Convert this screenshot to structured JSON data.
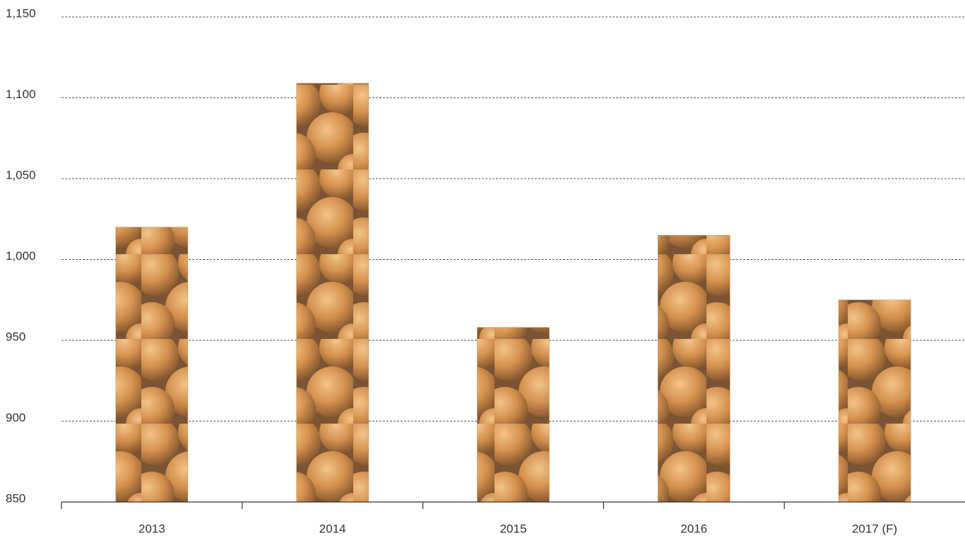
{
  "chart_data": {
    "type": "bar",
    "categories": [
      "2013",
      "2014",
      "2015",
      "2016",
      "2017 (F)"
    ],
    "values": [
      1020,
      1109,
      958,
      1015,
      975
    ],
    "color": "#c98a4a",
    "ylim": [
      850,
      1150
    ],
    "yticks": [
      850,
      900,
      950,
      {
        "value": 1000,
        "label": "1,000"
      },
      {
        "value": 1050,
        "label": "1,050"
      },
      {
        "value": 1100,
        "label": "1,100"
      },
      {
        "value": 1150,
        "label": "1,150"
      }
    ],
    "grid": true
  }
}
